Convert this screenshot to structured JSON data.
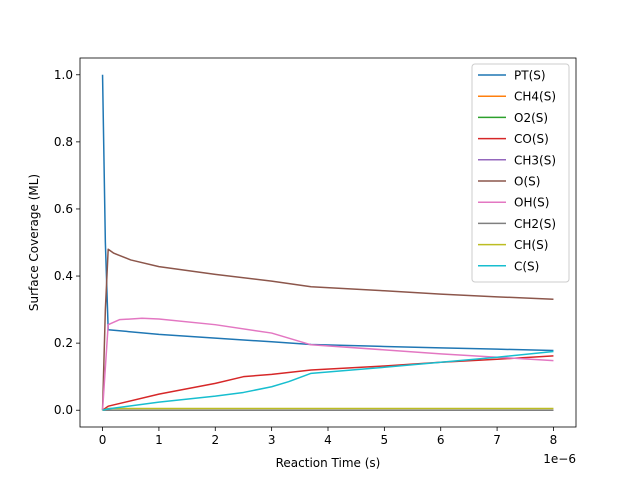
{
  "chart_data": {
    "type": "line",
    "title": "",
    "xlabel": "Reaction Time (s)",
    "ylabel": "Surface Coverage (ML)",
    "x_offset_label": "1e−6",
    "xlim": [
      -4e-07,
      8.4e-06
    ],
    "ylim": [
      -0.05,
      1.05
    ],
    "xticks": [
      0,
      1e-06,
      2e-06,
      3e-06,
      4e-06,
      5e-06,
      6e-06,
      7e-06,
      8e-06
    ],
    "xtick_labels": [
      "0",
      "1",
      "2",
      "3",
      "4",
      "5",
      "6",
      "7",
      "8"
    ],
    "yticks": [
      0.0,
      0.2,
      0.4,
      0.6,
      0.8,
      1.0
    ],
    "ytick_labels": [
      "0.0",
      "0.2",
      "0.4",
      "0.6",
      "0.8",
      "1.0"
    ],
    "grid": false,
    "legend_position": "top-right",
    "series": [
      {
        "name": "PT(S)",
        "color": "#1f77b4",
        "x": [
          0,
          5e-08,
          1e-07,
          1e-06,
          2e-06,
          3e-06,
          3.7e-06,
          5e-06,
          6e-06,
          7e-06,
          8e-06
        ],
        "y": [
          1.0,
          0.5,
          0.24,
          0.226,
          0.215,
          0.204,
          0.196,
          0.19,
          0.186,
          0.182,
          0.178
        ]
      },
      {
        "name": "CH4(S)",
        "color": "#ff7f0e",
        "x": [
          0,
          8e-06
        ],
        "y": [
          0.0,
          0.0
        ]
      },
      {
        "name": "O2(S)",
        "color": "#2ca02c",
        "x": [
          0,
          8e-06
        ],
        "y": [
          0.0,
          0.0
        ]
      },
      {
        "name": "CO(S)",
        "color": "#d62728",
        "x": [
          0,
          5e-08,
          1e-07,
          1e-06,
          2e-06,
          2.5e-06,
          3e-06,
          3.7e-06,
          5e-06,
          6e-06,
          7e-06,
          8e-06
        ],
        "y": [
          0.0,
          0.006,
          0.012,
          0.048,
          0.08,
          0.1,
          0.107,
          0.12,
          0.132,
          0.143,
          0.152,
          0.162
        ]
      },
      {
        "name": "CH3(S)",
        "color": "#9467bd",
        "x": [
          0,
          8e-06
        ],
        "y": [
          0.0,
          0.0
        ]
      },
      {
        "name": "O(S)",
        "color": "#8c564b",
        "x": [
          0,
          5e-08,
          1e-07,
          2e-07,
          5e-07,
          1e-06,
          2e-06,
          3e-06,
          3.7e-06,
          5e-06,
          6e-06,
          7e-06,
          8e-06
        ],
        "y": [
          0.0,
          0.3,
          0.48,
          0.468,
          0.448,
          0.428,
          0.405,
          0.385,
          0.368,
          0.356,
          0.346,
          0.338,
          0.331
        ]
      },
      {
        "name": "OH(S)",
        "color": "#e377c2",
        "x": [
          0,
          1e-07,
          3e-07,
          7e-07,
          1e-06,
          2e-06,
          3e-06,
          3.7e-06,
          5e-06,
          6e-06,
          7e-06,
          8e-06
        ],
        "y": [
          0.0,
          0.255,
          0.27,
          0.274,
          0.272,
          0.255,
          0.23,
          0.195,
          0.18,
          0.168,
          0.158,
          0.148
        ]
      },
      {
        "name": "CH2(S)",
        "color": "#7f7f7f",
        "x": [
          0,
          8e-06
        ],
        "y": [
          0.0,
          0.0
        ]
      },
      {
        "name": "CH(S)",
        "color": "#bcbd22",
        "x": [
          0,
          1e-07,
          8e-06
        ],
        "y": [
          0.0,
          0.005,
          0.005
        ]
      },
      {
        "name": "C(S)",
        "color": "#17becf",
        "x": [
          0,
          1e-07,
          1e-06,
          2e-06,
          2.5e-06,
          3e-06,
          3.3e-06,
          3.7e-06,
          5e-06,
          6e-06,
          7e-06,
          8e-06
        ],
        "y": [
          0.0,
          0.004,
          0.024,
          0.042,
          0.053,
          0.07,
          0.085,
          0.11,
          0.128,
          0.143,
          0.158,
          0.175
        ]
      }
    ]
  }
}
